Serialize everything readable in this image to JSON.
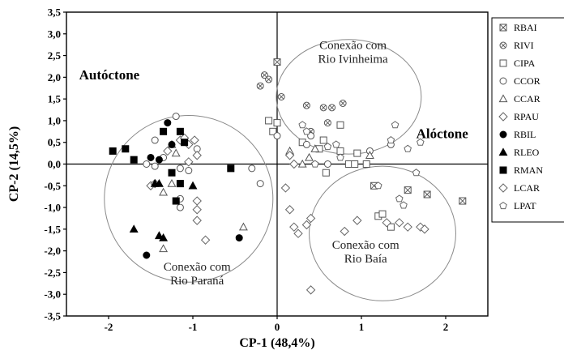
{
  "chart_data": {
    "type": "scatter",
    "xlabel": "CP-1 (48,4%)",
    "ylabel": "CP-2 (14,5%)",
    "xlim": [
      -2.5,
      2.5
    ],
    "ylim": [
      -3.5,
      3.5
    ],
    "x_ticks": [
      -2,
      -1,
      0,
      1,
      2
    ],
    "x_tick_labels": [
      "-2",
      "-1",
      "0",
      "1",
      "2"
    ],
    "y_ticks": [
      3.5,
      3.0,
      2.5,
      2.0,
      1.5,
      1.0,
      0.5,
      0.0,
      -0.5,
      -1.0,
      -1.5,
      -2.0,
      -2.5,
      -3.0,
      -3.5
    ],
    "y_tick_labels": [
      "3,5",
      "3,0",
      "2,5",
      "2,0",
      "1,5",
      "1,0",
      "0,5",
      "0,0",
      "-0,5",
      "-1,0",
      "-1,5",
      "-2,0",
      "-2,5",
      "-3,0",
      "-3,5"
    ],
    "group_labels": [
      {
        "text": "Autóctone",
        "x": -2.35,
        "y": 1.95
      },
      {
        "text": "Alóctone",
        "x": 1.65,
        "y": 0.6
      }
    ],
    "annotations": [
      {
        "lines": [
          "Conexão com",
          "Rio Ivinheima"
        ],
        "x": 0.9,
        "y": 2.65
      },
      {
        "lines": [
          "Conexão com",
          "Rio Baía"
        ],
        "x": 1.05,
        "y": -1.95
      },
      {
        "lines": [
          "Conexão com",
          "Rio Paraná"
        ],
        "x": -0.95,
        "y": -2.45
      }
    ],
    "ellipses": [
      {
        "name": "Rio Ivinheima",
        "cx": 0.85,
        "cy": 1.55,
        "rx": 0.86,
        "ry": 1.32
      },
      {
        "name": "Rio Baía",
        "cx": 1.25,
        "cy": -1.6,
        "rx": 0.87,
        "ry": 1.55
      },
      {
        "name": "Rio Paraná",
        "cx": -1.05,
        "cy": -0.8,
        "rx": 1.0,
        "ry": 1.92
      }
    ],
    "legend_position": "right",
    "series": [
      {
        "name": "RBAI",
        "marker": "box-x",
        "points": [
          [
            0.0,
            2.35
          ],
          [
            2.2,
            -0.85
          ],
          [
            1.55,
            -0.6
          ],
          [
            1.78,
            -0.7
          ],
          [
            1.15,
            -0.5
          ]
        ]
      },
      {
        "name": "RIVI",
        "marker": "circle-x",
        "points": [
          [
            -0.2,
            1.8
          ],
          [
            -0.1,
            1.95
          ],
          [
            -0.15,
            2.05
          ],
          [
            0.05,
            1.55
          ],
          [
            0.35,
            1.35
          ],
          [
            0.55,
            1.3
          ],
          [
            0.65,
            1.3
          ],
          [
            0.78,
            1.4
          ],
          [
            0.6,
            0.95
          ],
          [
            0.4,
            0.75
          ]
        ]
      },
      {
        "name": "CIPA",
        "marker": "square",
        "points": [
          [
            -0.1,
            1.0
          ],
          [
            0.0,
            0.95
          ],
          [
            -0.05,
            0.75
          ],
          [
            0.3,
            0.5
          ],
          [
            0.5,
            0.35
          ],
          [
            0.55,
            0.55
          ],
          [
            0.75,
            0.3
          ],
          [
            0.75,
            0.9
          ],
          [
            0.95,
            0.25
          ],
          [
            0.85,
            0.0
          ],
          [
            0.92,
            0.0
          ],
          [
            1.06,
            0.0
          ],
          [
            0.58,
            -0.2
          ],
          [
            1.2,
            -1.2
          ],
          [
            1.25,
            -1.15
          ],
          [
            1.35,
            -1.45
          ]
        ]
      },
      {
        "name": "CCOR",
        "marker": "circle",
        "points": [
          [
            -1.2,
            1.1
          ],
          [
            -1.45,
            0.55
          ],
          [
            -1.55,
            0.0
          ],
          [
            -1.45,
            -0.05
          ],
          [
            -1.35,
            0.15
          ],
          [
            -1.05,
            -0.15
          ],
          [
            -1.15,
            -0.1
          ],
          [
            -1.15,
            -0.8
          ],
          [
            -1.15,
            -1.0
          ],
          [
            -0.95,
            0.35
          ],
          [
            -0.3,
            -0.1
          ],
          [
            -0.2,
            -0.45
          ],
          [
            0.0,
            0.65
          ],
          [
            0.35,
            0.45
          ],
          [
            0.4,
            0.65
          ],
          [
            1.1,
            0.3
          ],
          [
            1.35,
            0.45
          ],
          [
            0.6,
            0.0
          ]
        ]
      },
      {
        "name": "CCAR",
        "marker": "triangle-up",
        "points": [
          [
            -1.35,
            -1.95
          ],
          [
            -1.25,
            0.45
          ],
          [
            -1.2,
            0.25
          ],
          [
            -1.25,
            -0.45
          ],
          [
            -1.35,
            -0.65
          ],
          [
            -0.4,
            -1.45
          ],
          [
            0.15,
            0.3
          ],
          [
            0.3,
            0.0
          ],
          [
            0.38,
            0.15
          ],
          [
            0.45,
            0.35
          ],
          [
            1.1,
            0.2
          ]
        ]
      },
      {
        "name": "RPAU",
        "marker": "diamond",
        "points": [
          [
            -1.3,
            0.3
          ],
          [
            -1.15,
            0.55
          ],
          [
            -1.1,
            0.6
          ],
          [
            -1.05,
            0.45
          ],
          [
            -0.98,
            0.55
          ],
          [
            -0.95,
            0.2
          ],
          [
            -1.05,
            0.05
          ],
          [
            -0.95,
            -0.85
          ],
          [
            -0.95,
            -1.05
          ],
          [
            -0.95,
            -1.3
          ],
          [
            -0.85,
            -1.75
          ],
          [
            -1.5,
            -0.5
          ],
          [
            -1.45,
            -0.45
          ]
        ]
      },
      {
        "name": "RBIL",
        "marker": "circle",
        "filled": true,
        "points": [
          [
            -1.5,
            0.15
          ],
          [
            -1.4,
            0.1
          ],
          [
            -1.25,
            0.45
          ],
          [
            -1.3,
            0.95
          ],
          [
            -1.55,
            -2.1
          ],
          [
            -0.45,
            -1.7
          ]
        ]
      },
      {
        "name": "RLEO",
        "marker": "triangle-up",
        "filled": true,
        "points": [
          [
            -1.7,
            -1.5
          ],
          [
            -1.4,
            -1.65
          ],
          [
            -1.35,
            -1.7
          ],
          [
            -1.45,
            -0.45
          ],
          [
            -1.4,
            -0.45
          ],
          [
            -1.0,
            -0.5
          ]
        ]
      },
      {
        "name": "RMAN",
        "marker": "square",
        "filled": true,
        "points": [
          [
            -1.8,
            0.35
          ],
          [
            -1.95,
            0.3
          ],
          [
            -1.7,
            0.1
          ],
          [
            -1.35,
            0.75
          ],
          [
            -1.15,
            0.75
          ],
          [
            -1.1,
            0.5
          ],
          [
            -1.25,
            -0.2
          ],
          [
            -1.15,
            -0.45
          ],
          [
            -1.2,
            -0.85
          ],
          [
            -0.55,
            -0.1
          ]
        ]
      },
      {
        "name": "LCAR",
        "marker": "diamond",
        "points": [
          [
            0.1,
            -0.55
          ],
          [
            0.15,
            -1.05
          ],
          [
            0.2,
            -1.45
          ],
          [
            0.25,
            -1.6
          ],
          [
            0.4,
            -1.25
          ],
          [
            0.35,
            -1.4
          ],
          [
            0.8,
            -1.55
          ],
          [
            0.95,
            -1.3
          ],
          [
            1.3,
            -1.35
          ],
          [
            1.45,
            -1.35
          ],
          [
            1.55,
            -1.45
          ],
          [
            1.7,
            -1.45
          ],
          [
            1.75,
            -1.5
          ],
          [
            0.4,
            -2.9
          ],
          [
            0.15,
            0.2
          ],
          [
            0.2,
            0.0
          ]
        ]
      },
      {
        "name": "LPAT",
        "marker": "pentagon",
        "points": [
          [
            0.3,
            0.9
          ],
          [
            0.35,
            0.75
          ],
          [
            0.45,
            0.0
          ],
          [
            0.6,
            0.4
          ],
          [
            0.7,
            0.45
          ],
          [
            0.75,
            0.15
          ],
          [
            1.35,
            0.55
          ],
          [
            1.4,
            0.9
          ],
          [
            1.55,
            0.35
          ],
          [
            1.7,
            0.5
          ],
          [
            1.2,
            -0.5
          ],
          [
            1.45,
            -0.8
          ],
          [
            1.5,
            -0.95
          ],
          [
            1.65,
            -0.2
          ]
        ]
      }
    ]
  }
}
